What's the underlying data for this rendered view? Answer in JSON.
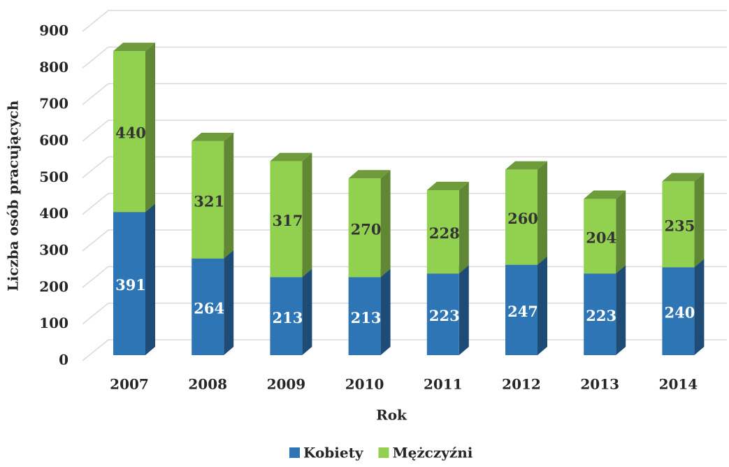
{
  "chart_data": {
    "type": "bar3d_stacked",
    "x_label": "Rok",
    "y_label": "Liczba osób pracujących",
    "categories": [
      "2007",
      "2008",
      "2009",
      "2010",
      "2011",
      "2012",
      "2013",
      "2014"
    ],
    "series": [
      {
        "name": "Kobiety",
        "color": "#2e75b6",
        "values": [
          391,
          264,
          213,
          213,
          223,
          247,
          223,
          240
        ]
      },
      {
        "name": "Mężczyźni",
        "color": "#92d050",
        "values": [
          440,
          321,
          317,
          270,
          228,
          260,
          204,
          235
        ]
      }
    ],
    "ylim": [
      0,
      900
    ],
    "yticks": [
      0,
      100,
      200,
      300,
      400,
      500,
      600,
      700,
      800,
      900
    ],
    "grid": true,
    "legend": "bottom"
  }
}
